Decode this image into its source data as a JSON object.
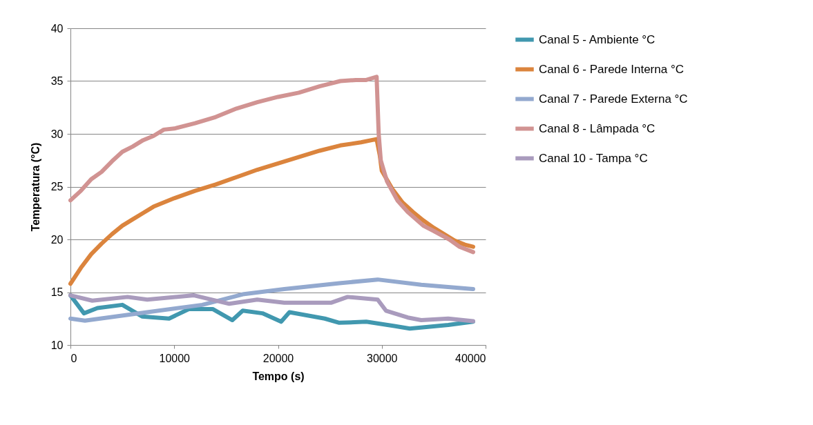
{
  "chart_data": {
    "type": "line",
    "xlabel": "Tempo (s)",
    "ylabel": "Temperatura (°C)",
    "xlim": [
      0,
      40000
    ],
    "xticks": [
      0,
      10000,
      20000,
      30000,
      40000
    ],
    "ylim": [
      10,
      40
    ],
    "yticks": [
      10,
      15,
      20,
      25,
      30,
      35,
      40
    ],
    "grid": "y",
    "legend": "right",
    "marker": "none",
    "line_style": "solid",
    "series": [
      {
        "name": "Canal 5 - Ambiente °C",
        "color": "#4198af",
        "x": [
          0,
          1300,
          2600,
          5000,
          6900,
          9500,
          11400,
          13700,
          15600,
          16600,
          18500,
          20300,
          21100,
          24500,
          25900,
          28500,
          31200,
          32700,
          36400,
          38800
        ],
        "values": [
          14.7,
          13.0,
          13.5,
          13.8,
          12.7,
          12.5,
          13.4,
          13.4,
          12.35,
          13.25,
          13.0,
          12.2,
          13.1,
          12.5,
          12.1,
          12.2,
          11.8,
          11.55,
          11.9,
          12.2
        ]
      },
      {
        "name": "Canal 6 - Parede Interna °C",
        "color": "#db843d",
        "x": [
          0,
          1000,
          2000,
          3000,
          4000,
          5000,
          6000,
          7000,
          8000,
          10000,
          12000,
          14000,
          16000,
          18000,
          20000,
          22000,
          24000,
          26000,
          28000,
          29500,
          29800,
          30000,
          31000,
          32000,
          33000,
          34000,
          35000,
          36000,
          37000,
          38000,
          38800
        ],
        "values": [
          15.8,
          17.3,
          18.6,
          19.6,
          20.5,
          21.3,
          21.9,
          22.5,
          23.1,
          23.9,
          24.6,
          25.2,
          25.9,
          26.6,
          27.2,
          27.8,
          28.4,
          28.9,
          29.2,
          29.5,
          28,
          26.5,
          24.8,
          23.5,
          22.6,
          21.8,
          21.1,
          20.5,
          19.9,
          19.5,
          19.3
        ]
      },
      {
        "name": "Canal 7 - Parede Externa °C",
        "color": "#93a9cf",
        "x": [
          0,
          1400,
          7400,
          12700,
          16600,
          20600,
          25900,
          29600,
          33800,
          38800
        ],
        "values": [
          12.5,
          12.3,
          13.1,
          13.8,
          14.8,
          15.3,
          15.85,
          16.2,
          15.7,
          15.3
        ]
      },
      {
        "name": "Canal 8 - Lâmpada °C",
        "color": "#d19392",
        "x": [
          0,
          1000,
          2000,
          3000,
          4000,
          5000,
          6000,
          7000,
          8000,
          9000,
          10000,
          12000,
          14000,
          16000,
          18000,
          20000,
          22000,
          24000,
          26000,
          27500,
          28500,
          29500,
          29700,
          29900,
          30500,
          31500,
          32500,
          34000,
          35000,
          36500,
          37500,
          38800
        ],
        "values": [
          23.7,
          24.6,
          25.7,
          26.4,
          27.4,
          28.3,
          28.8,
          29.4,
          29.8,
          30.4,
          30.5,
          31.0,
          31.6,
          32.4,
          33.0,
          33.5,
          33.9,
          34.5,
          35.0,
          35.1,
          35.1,
          35.4,
          30,
          27.5,
          25.5,
          23.7,
          22.6,
          21.3,
          20.8,
          20.0,
          19.3,
          18.8
        ]
      },
      {
        "name": "Canal 10 - Tampa °C",
        "color": "#a99bbd",
        "x": [
          0,
          2100,
          5500,
          7400,
          11900,
          15300,
          18000,
          20600,
          25100,
          26700,
          29600,
          30400,
          32500,
          33800,
          36400,
          38800
        ],
        "values": [
          14.7,
          14.2,
          14.55,
          14.3,
          14.7,
          13.9,
          14.3,
          14.0,
          14.0,
          14.55,
          14.3,
          13.25,
          12.6,
          12.35,
          12.5,
          12.25
        ]
      }
    ]
  }
}
